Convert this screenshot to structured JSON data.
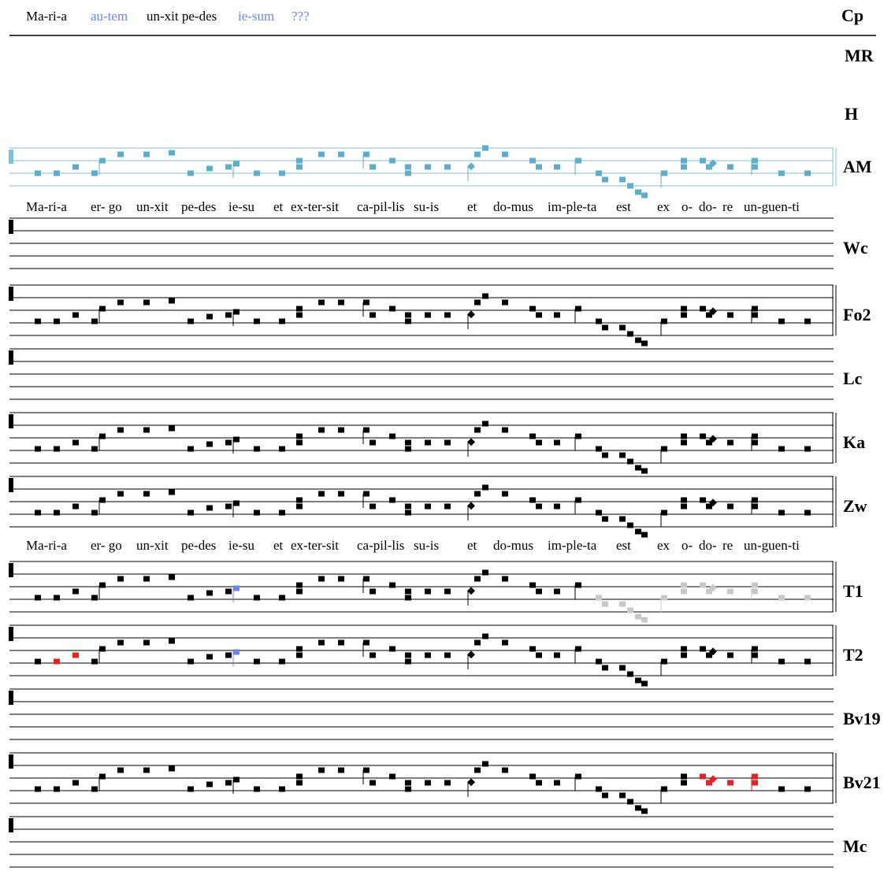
{
  "header": {
    "siglum": "Cp",
    "text": [
      {
        "text": "Ma-ri-a",
        "highlight": false
      },
      {
        "text": "au-tem",
        "highlight": true
      },
      {
        "text": "un-xit pe-des",
        "highlight": false
      },
      {
        "text": "ie-sum",
        "highlight": true
      },
      {
        "text": "???",
        "highlight": true
      }
    ]
  },
  "lyrics": [
    "Ma-ri-a",
    "er- go",
    "un-xit",
    "pe-des",
    "ie-su",
    "et",
    "ex-ter-sit",
    "ca-pil-lis",
    "su-is",
    "et",
    "do-mus",
    "im-ple-ta",
    "est",
    "ex",
    "o-",
    "do-",
    "re",
    "un-guen-ti"
  ],
  "empty_sigla": [
    "MR",
    "H"
  ],
  "staves": [
    {
      "siglum": "AM",
      "notes": true,
      "color": "#5eaecb"
    },
    {
      "siglum": "Wc",
      "notes": false
    },
    {
      "siglum": "Fo2",
      "notes": true,
      "color": "#000"
    },
    {
      "siglum": "Lc",
      "notes": false
    },
    {
      "siglum": "Ka",
      "notes": true,
      "color": "#000"
    },
    {
      "siglum": "Zw",
      "notes": true,
      "color": "#000"
    },
    {
      "siglum": "T1",
      "notes": true,
      "color": "#000"
    },
    {
      "siglum": "T2",
      "notes": true,
      "color": "#000"
    },
    {
      "siglum": "Bv19",
      "notes": false
    },
    {
      "siglum": "Bv21",
      "notes": true,
      "color": "#000"
    },
    {
      "siglum": "Mc",
      "notes": false
    }
  ]
}
